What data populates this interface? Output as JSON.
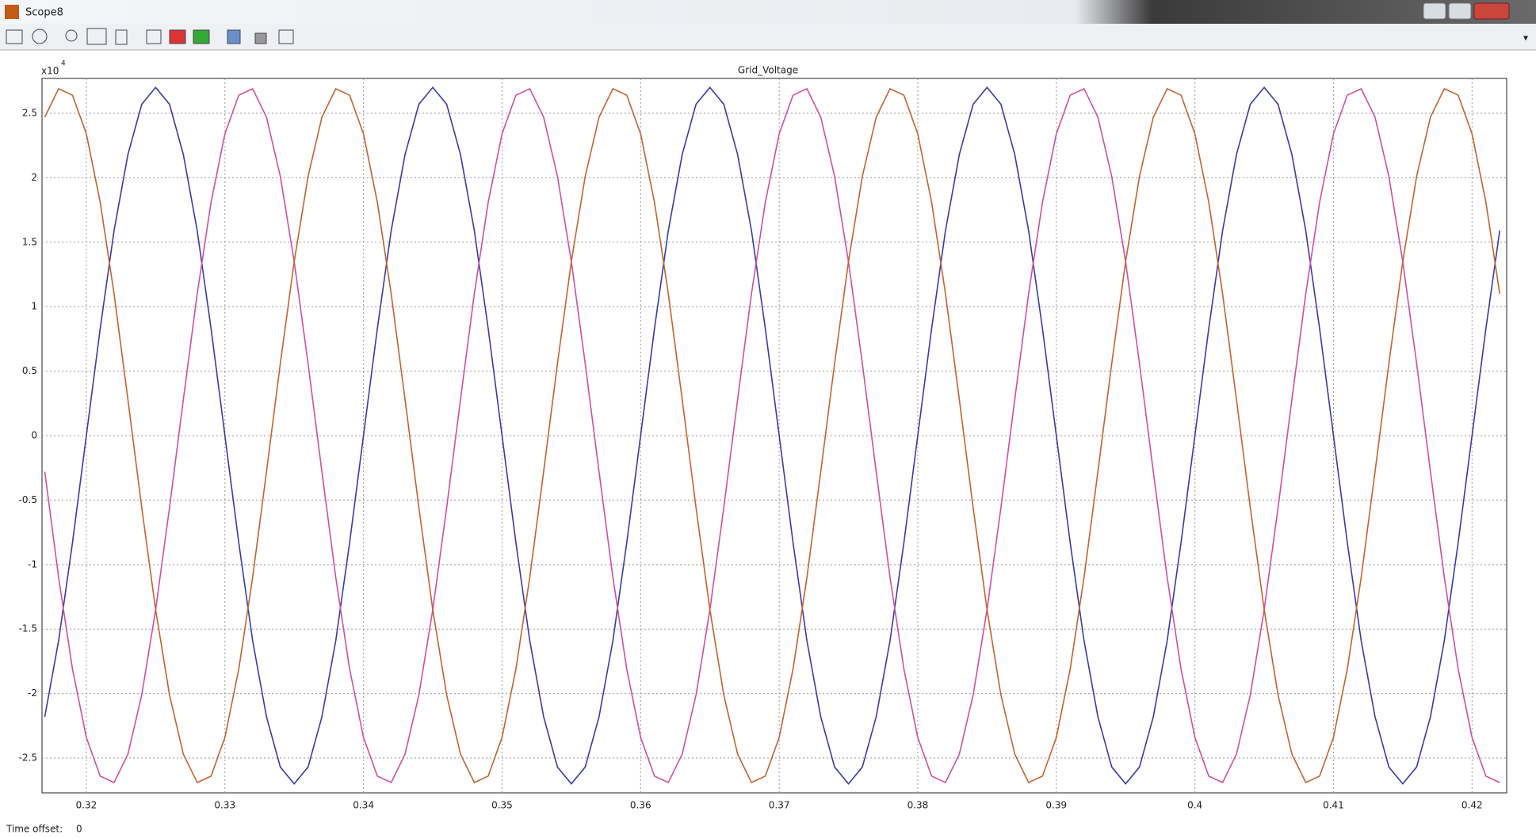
{
  "window": {
    "title": "Scope8"
  },
  "chart_data": {
    "type": "line",
    "title": "Grid_Voltage",
    "y_multiplier": {
      "base": "x10",
      "exponent": "4"
    },
    "x": [
      0.317,
      0.318,
      0.319,
      0.32,
      0.321,
      0.322,
      0.323,
      0.324,
      0.325,
      0.326,
      0.327,
      0.328,
      0.329,
      0.33,
      0.331,
      0.332,
      0.333,
      0.334,
      0.335,
      0.336,
      0.337,
      0.338,
      0.339,
      0.34,
      0.341,
      0.342,
      0.343,
      0.344,
      0.345,
      0.346,
      0.347,
      0.348,
      0.349,
      0.35,
      0.351,
      0.352,
      0.353,
      0.354,
      0.355,
      0.356,
      0.357,
      0.358,
      0.359,
      0.36,
      0.361,
      0.362,
      0.363,
      0.364,
      0.365,
      0.366,
      0.367,
      0.368,
      0.369,
      0.37,
      0.371,
      0.372,
      0.373,
      0.374,
      0.375,
      0.376,
      0.377,
      0.378,
      0.379,
      0.38,
      0.381,
      0.382,
      0.383,
      0.384,
      0.385,
      0.386,
      0.387,
      0.388,
      0.389,
      0.39,
      0.391,
      0.392,
      0.393,
      0.394,
      0.395,
      0.396,
      0.397,
      0.398,
      0.399,
      0.4,
      0.401,
      0.402,
      0.403,
      0.404,
      0.405,
      0.406,
      0.407,
      0.408,
      0.409,
      0.41,
      0.411,
      0.412,
      0.413,
      0.414,
      0.415,
      0.416,
      0.417,
      0.418,
      0.419,
      0.42,
      0.421,
      0.422
    ],
    "series": [
      {
        "color": "#3b3ba6",
        "values": [
          -2.18,
          -1.59,
          -0.83,
          0,
          0.83,
          1.59,
          2.18,
          2.57,
          2.7,
          2.57,
          2.18,
          1.59,
          0.83,
          0,
          -0.83,
          -1.59,
          -2.18,
          -2.57,
          -2.7,
          -2.57,
          -2.18,
          -1.59,
          -0.83,
          0,
          0.83,
          1.59,
          2.18,
          2.57,
          2.7,
          2.57,
          2.18,
          1.59,
          0.83,
          0,
          -0.83,
          -1.59,
          -2.18,
          -2.57,
          -2.7,
          -2.57,
          -2.18,
          -1.59,
          -0.83,
          0,
          0.83,
          1.59,
          2.18,
          2.57,
          2.7,
          2.57,
          2.18,
          1.59,
          0.83,
          0,
          -0.83,
          -1.59,
          -2.18,
          -2.57,
          -2.7,
          -2.57,
          -2.18,
          -1.59,
          -0.83,
          0,
          0.83,
          1.59,
          2.18,
          2.57,
          2.7,
          2.57,
          2.18,
          1.59,
          0.83,
          0,
          -0.83,
          -1.59,
          -2.18,
          -2.57,
          -2.7,
          -2.57,
          -2.18,
          -1.59,
          -0.83,
          0,
          0.83,
          1.59,
          2.18,
          2.57,
          2.7,
          2.57,
          2.18,
          1.59,
          0.83,
          0,
          -0.83,
          -1.59,
          -2.18,
          -2.57,
          -2.7,
          -2.57,
          -2.18,
          -1.59,
          -0.83,
          0,
          0.83,
          1.59
        ]
      },
      {
        "color": "#d14fa0",
        "values": [
          -0.28,
          -1.1,
          -1.81,
          -2.34,
          -2.64,
          -2.69,
          -2.47,
          -2.01,
          -1.35,
          -0.56,
          0.28,
          1.1,
          1.81,
          2.34,
          2.64,
          2.69,
          2.47,
          2.01,
          1.35,
          0.56,
          -0.28,
          -1.1,
          -1.81,
          -2.34,
          -2.64,
          -2.69,
          -2.47,
          -2.01,
          -1.35,
          -0.56,
          0.28,
          1.1,
          1.81,
          2.34,
          2.64,
          2.69,
          2.47,
          2.01,
          1.35,
          0.56,
          -0.28,
          -1.1,
          -1.81,
          -2.34,
          -2.64,
          -2.69,
          -2.47,
          -2.01,
          -1.35,
          -0.56,
          0.28,
          1.1,
          1.81,
          2.34,
          2.64,
          2.69,
          2.47,
          2.01,
          1.35,
          0.56,
          -0.28,
          -1.1,
          -1.81,
          -2.34,
          -2.64,
          -2.69,
          -2.47,
          -2.01,
          -1.35,
          -0.56,
          0.28,
          1.1,
          1.81,
          2.34,
          2.64,
          2.69,
          2.47,
          2.01,
          1.35,
          0.56,
          -0.28,
          -1.1,
          -1.81,
          -2.34,
          -2.64,
          -2.69,
          -2.47,
          -2.01,
          -1.35,
          -0.56,
          0.28,
          1.1,
          1.81,
          2.34,
          2.64,
          2.69,
          2.47,
          2.01,
          1.35,
          0.56,
          -0.28,
          -1.1,
          -1.81,
          -2.34,
          -2.64,
          -2.69
        ]
      },
      {
        "color": "#c4632e",
        "values": [
          2.47,
          2.69,
          2.64,
          2.34,
          1.81,
          1.1,
          0.28,
          -0.56,
          -1.35,
          -2.01,
          -2.47,
          -2.69,
          -2.64,
          -2.34,
          -1.81,
          -1.1,
          -0.28,
          0.56,
          1.35,
          2.01,
          2.47,
          2.69,
          2.64,
          2.34,
          1.81,
          1.1,
          0.28,
          -0.56,
          -1.35,
          -2.01,
          -2.47,
          -2.69,
          -2.64,
          -2.34,
          -1.81,
          -1.1,
          -0.28,
          0.56,
          1.35,
          2.01,
          2.47,
          2.69,
          2.64,
          2.34,
          1.81,
          1.1,
          0.28,
          -0.56,
          -1.35,
          -2.01,
          -2.47,
          -2.69,
          -2.64,
          -2.34,
          -1.81,
          -1.1,
          -0.28,
          0.56,
          1.35,
          2.01,
          2.47,
          2.69,
          2.64,
          2.34,
          1.81,
          1.1,
          0.28,
          -0.56,
          -1.35,
          -2.01,
          -2.47,
          -2.69,
          -2.64,
          -2.34,
          -1.81,
          -1.1,
          -0.28,
          0.56,
          1.35,
          2.01,
          2.47,
          2.69,
          2.64,
          2.34,
          1.81,
          1.1,
          0.28,
          -0.56,
          -1.35,
          -2.01,
          -2.47,
          -2.69,
          -2.64,
          -2.34,
          -1.81,
          -1.1,
          -0.28,
          0.56,
          1.35,
          2.01,
          2.47,
          2.69,
          2.64,
          2.34,
          1.81,
          1.1
        ]
      }
    ],
    "xlim": [
      0.3168,
      0.4225
    ],
    "xticks": [
      0.32,
      0.33,
      0.34,
      0.35,
      0.36,
      0.37,
      0.38,
      0.39,
      0.4,
      0.41,
      0.42
    ],
    "ylim": [
      -2.77,
      2.77
    ],
    "yticks": [
      -2.5,
      -2,
      -1.5,
      -1,
      -0.5,
      0,
      0.5,
      1,
      1.5,
      2,
      2.5
    ],
    "grid": true
  },
  "status": {
    "label": "Time offset:",
    "value": 0
  }
}
